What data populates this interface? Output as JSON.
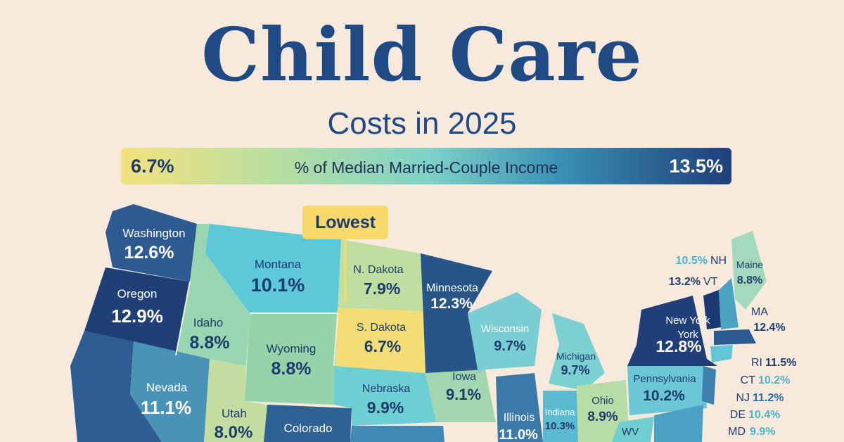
{
  "title": {
    "main": "Child Care",
    "sub": "Costs in 2025"
  },
  "legend": {
    "min": "6.7%",
    "label": "% of Median Married-Couple Income",
    "max": "13.5%"
  },
  "callout": {
    "label": "Lowest"
  },
  "colors": {
    "background": "#f7eadc",
    "title": "#1f4a84",
    "scale_low": "#f4e27e",
    "scale_mid": "#7fd3c8",
    "scale_high": "#1f3f7a"
  },
  "states": [
    {
      "name": "Washington",
      "value": "12.6%"
    },
    {
      "name": "Oregon",
      "value": "12.9%"
    },
    {
      "name": "Idaho",
      "value": "8.8%"
    },
    {
      "name": "Montana",
      "value": "10.1%"
    },
    {
      "name": "N. Dakota",
      "value": "7.9%"
    },
    {
      "name": "S. Dakota",
      "value": "6.7%"
    },
    {
      "name": "Minnesota",
      "value": "12.3%"
    },
    {
      "name": "Wyoming",
      "value": "8.8%"
    },
    {
      "name": "Nevada",
      "value": "11.1%"
    },
    {
      "name": "Utah",
      "value": "8.0%"
    },
    {
      "name": "Colorado",
      "value": ""
    },
    {
      "name": "Nebraska",
      "value": "9.9%"
    },
    {
      "name": "Iowa",
      "value": "9.1%"
    },
    {
      "name": "Wisconsin",
      "value": "9.7%"
    },
    {
      "name": "Michigan",
      "value": "9.7%"
    },
    {
      "name": "Illinois",
      "value": "11.0%"
    },
    {
      "name": "Indiana",
      "value": "10.3%"
    },
    {
      "name": "Ohio",
      "value": "8.9%"
    },
    {
      "name": "Pennsylvania",
      "value": "10.2%"
    },
    {
      "name": "New York",
      "value": "12.8%"
    },
    {
      "name": "Maine",
      "value": "8.8%"
    },
    {
      "name": "WV",
      "value": ""
    }
  ],
  "small_states": [
    {
      "abbr": "NH",
      "value": "10.5%"
    },
    {
      "abbr": "VT",
      "value": "13.2%"
    },
    {
      "abbr": "MA",
      "value": "12.4%"
    },
    {
      "abbr": "RI",
      "value": "11.5%"
    },
    {
      "abbr": "CT",
      "value": "10.2%"
    },
    {
      "abbr": "NJ",
      "value": "11.2%"
    },
    {
      "abbr": "DE",
      "value": "10.4%"
    },
    {
      "abbr": "MD",
      "value": "9.9%"
    }
  ]
}
